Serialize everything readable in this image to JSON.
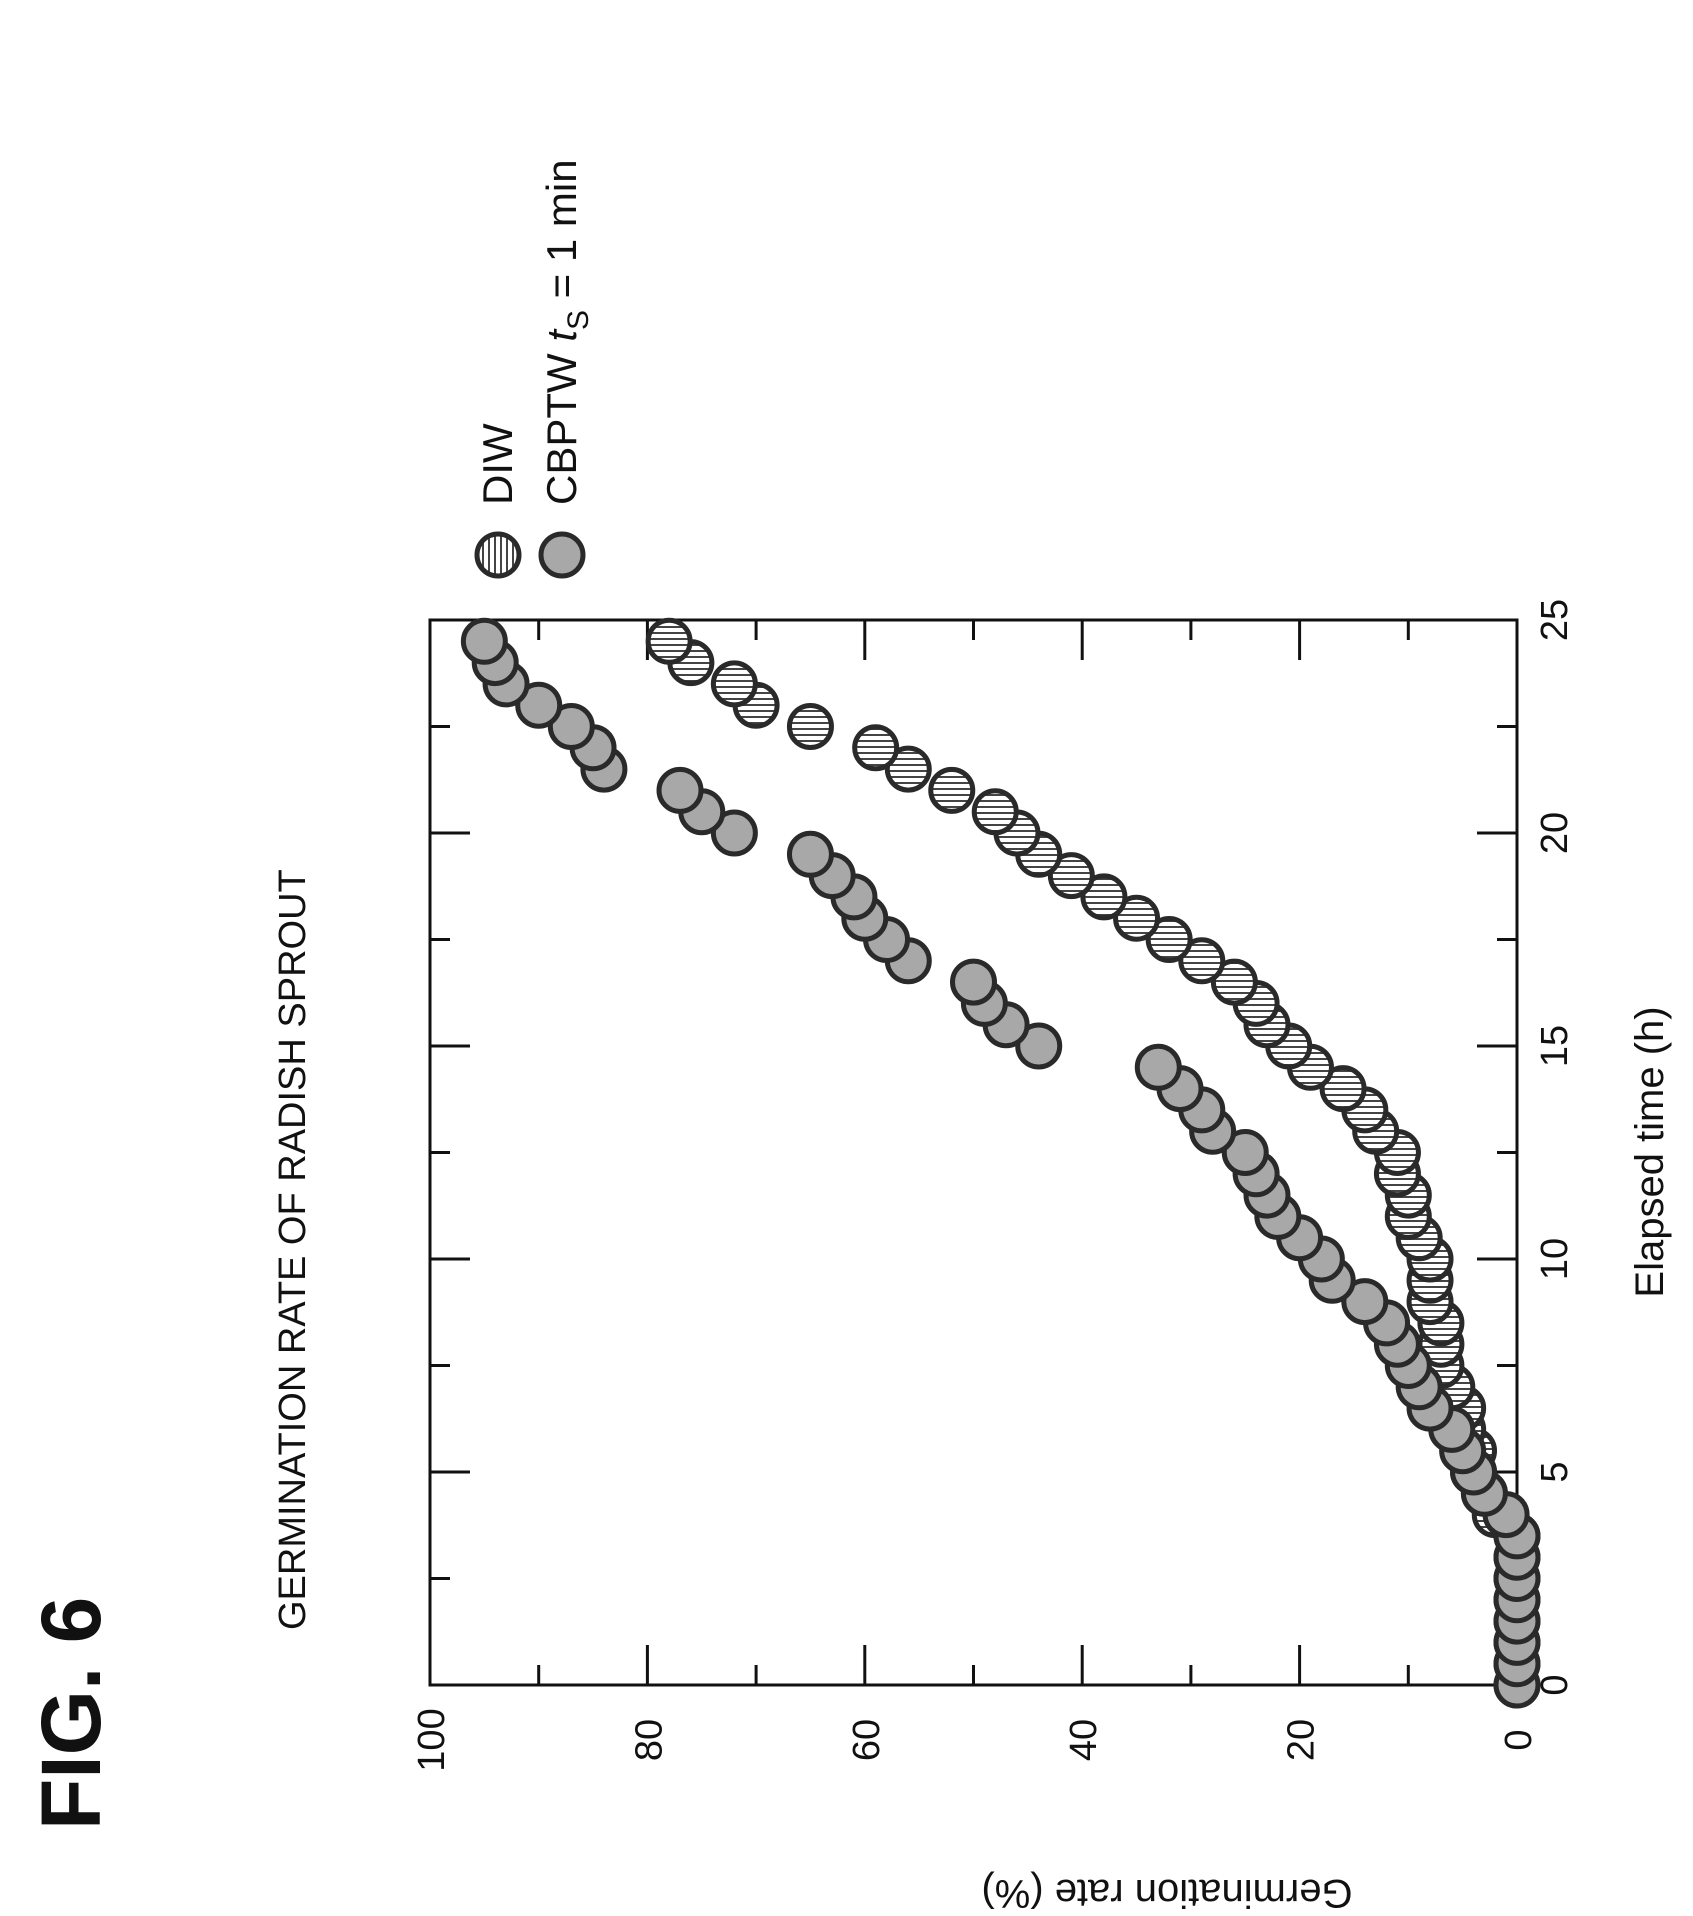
{
  "figure_label": "FIG. 6",
  "chart_data": {
    "type": "scatter",
    "title": "GERMINATION RATE OF RADISH SPROUT",
    "xlabel": "Elapsed time (h)",
    "ylabel": "Germination rate (%)",
    "xlim": [
      0,
      25
    ],
    "ylim": [
      0,
      100
    ],
    "xticks": [
      0,
      5,
      10,
      15,
      20,
      25
    ],
    "yticks": [
      0,
      20,
      40,
      60,
      80,
      100
    ],
    "orientation": "rotated 90 degrees counter-clockwise",
    "grid": false,
    "legend_position": "right",
    "series": [
      {
        "name": "DIW",
        "marker": "hatched-circle",
        "points": [
          [
            0.0,
            0
          ],
          [
            0.5,
            0
          ],
          [
            1.0,
            0
          ],
          [
            1.5,
            0
          ],
          [
            2.0,
            0
          ],
          [
            2.5,
            0
          ],
          [
            3.0,
            0
          ],
          [
            3.5,
            0
          ],
          [
            4.0,
            2
          ],
          [
            4.5,
            3
          ],
          [
            5.0,
            4
          ],
          [
            5.5,
            4
          ],
          [
            6.0,
            5
          ],
          [
            6.5,
            5
          ],
          [
            7.0,
            6
          ],
          [
            7.5,
            7
          ],
          [
            8.0,
            7
          ],
          [
            8.5,
            7
          ],
          [
            9.0,
            8
          ],
          [
            9.5,
            8
          ],
          [
            10.0,
            8
          ],
          [
            10.5,
            9
          ],
          [
            11.0,
            10
          ],
          [
            11.5,
            10
          ],
          [
            12.0,
            11
          ],
          [
            12.5,
            11
          ],
          [
            13.0,
            13
          ],
          [
            13.5,
            14
          ],
          [
            14.0,
            16
          ],
          [
            14.5,
            19
          ],
          [
            15.0,
            21
          ],
          [
            15.5,
            23
          ],
          [
            16.0,
            24
          ],
          [
            16.5,
            26
          ],
          [
            17.0,
            29
          ],
          [
            17.5,
            32
          ],
          [
            18.0,
            35
          ],
          [
            18.5,
            38
          ],
          [
            19.0,
            41
          ],
          [
            19.5,
            44
          ],
          [
            20.0,
            46
          ],
          [
            20.5,
            48
          ],
          [
            21.0,
            52
          ],
          [
            21.5,
            56
          ],
          [
            22.0,
            59
          ],
          [
            22.5,
            65
          ],
          [
            23.0,
            70
          ],
          [
            23.5,
            72
          ],
          [
            24.0,
            76
          ],
          [
            24.5,
            78
          ]
        ]
      },
      {
        "name": "CBPTW t_s = 1 min",
        "marker": "filled-circle",
        "points": [
          [
            0.0,
            0
          ],
          [
            0.5,
            0
          ],
          [
            1.0,
            0
          ],
          [
            1.5,
            0
          ],
          [
            2.0,
            0
          ],
          [
            2.5,
            0
          ],
          [
            3.0,
            0
          ],
          [
            3.5,
            0
          ],
          [
            4.0,
            1
          ],
          [
            4.5,
            3
          ],
          [
            5.0,
            4
          ],
          [
            5.5,
            5
          ],
          [
            6.0,
            6
          ],
          [
            6.5,
            8
          ],
          [
            7.0,
            9
          ],
          [
            7.5,
            10
          ],
          [
            8.0,
            11
          ],
          [
            8.5,
            12
          ],
          [
            9.0,
            14
          ],
          [
            9.5,
            17
          ],
          [
            10.0,
            18
          ],
          [
            10.5,
            20
          ],
          [
            11.0,
            22
          ],
          [
            11.5,
            23
          ],
          [
            12.0,
            24
          ],
          [
            12.5,
            25
          ],
          [
            13.0,
            28
          ],
          [
            13.5,
            29
          ],
          [
            14.0,
            31
          ],
          [
            14.5,
            33
          ],
          [
            15.0,
            44
          ],
          [
            15.5,
            47
          ],
          [
            16.0,
            49
          ],
          [
            16.5,
            50
          ],
          [
            17.0,
            56
          ],
          [
            17.5,
            58
          ],
          [
            18.0,
            60
          ],
          [
            18.5,
            61
          ],
          [
            19.0,
            63
          ],
          [
            19.5,
            65
          ],
          [
            20.0,
            72
          ],
          [
            20.5,
            75
          ],
          [
            21.0,
            77
          ],
          [
            21.5,
            84
          ],
          [
            22.0,
            85
          ],
          [
            22.5,
            87
          ],
          [
            23.0,
            90
          ],
          [
            23.5,
            93
          ],
          [
            24.0,
            94
          ],
          [
            24.5,
            95
          ]
        ]
      }
    ]
  },
  "legend": {
    "diw_label": "DIW",
    "cbptw_label_main": "CBPTW ",
    "cbptw_label_t": "t",
    "cbptw_label_sub": "S",
    "cbptw_label_rest": " = 1 min"
  },
  "colors": {
    "marker_fill": "#a8a8a8",
    "marker_stroke": "#2a2a2a",
    "axis": "#111111",
    "background": "#ffffff"
  }
}
